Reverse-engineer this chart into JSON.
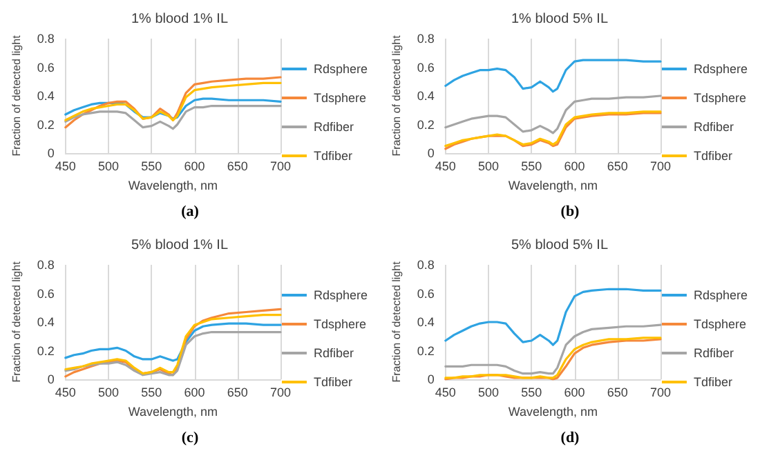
{
  "chart_data": [
    {
      "type": "line",
      "title": "1% blood 1% IL",
      "xlabel": "Wavelength, nm",
      "ylabel": "Fraction of detected light",
      "annotations": [
        "(a)"
      ],
      "xlim": [
        450,
        700
      ],
      "xticks": [
        450,
        500,
        550,
        600,
        650,
        700
      ],
      "ylim": [
        0,
        0.8
      ],
      "yticks": [
        0,
        0.2,
        0.4,
        0.6,
        0.8
      ],
      "grid": "x",
      "legend": "right",
      "marker": "none",
      "line_style": "solid",
      "x": [
        450,
        460,
        470,
        480,
        490,
        500,
        510,
        520,
        530,
        540,
        550,
        560,
        570,
        575,
        580,
        590,
        600,
        610,
        620,
        640,
        660,
        680,
        700
      ],
      "series": [
        {
          "name": "Rdsphere",
          "color": "#2ea3e2",
          "values": [
            0.27,
            0.3,
            0.32,
            0.34,
            0.35,
            0.35,
            0.35,
            0.34,
            0.29,
            0.25,
            0.25,
            0.28,
            0.26,
            0.24,
            0.25,
            0.33,
            0.37,
            0.38,
            0.38,
            0.37,
            0.37,
            0.37,
            0.36
          ]
        },
        {
          "name": "Tdsphere",
          "color": "#f5883a",
          "values": [
            0.18,
            0.23,
            0.27,
            0.3,
            0.33,
            0.35,
            0.36,
            0.36,
            0.31,
            0.24,
            0.25,
            0.31,
            0.27,
            0.23,
            0.28,
            0.42,
            0.48,
            0.49,
            0.5,
            0.51,
            0.52,
            0.52,
            0.53
          ]
        },
        {
          "name": "Rdfiber",
          "color": "#a5a5a5",
          "values": [
            0.22,
            0.25,
            0.27,
            0.28,
            0.29,
            0.29,
            0.29,
            0.28,
            0.23,
            0.18,
            0.19,
            0.22,
            0.19,
            0.17,
            0.2,
            0.29,
            0.32,
            0.32,
            0.33,
            0.33,
            0.33,
            0.33,
            0.33
          ]
        },
        {
          "name": "Tdfiber",
          "color": "#ffc000",
          "values": [
            0.23,
            0.26,
            0.29,
            0.31,
            0.32,
            0.33,
            0.34,
            0.34,
            0.3,
            0.24,
            0.25,
            0.29,
            0.26,
            0.23,
            0.26,
            0.39,
            0.44,
            0.45,
            0.46,
            0.47,
            0.48,
            0.49,
            0.49
          ]
        }
      ]
    },
    {
      "type": "line",
      "title": "1% blood 5% IL",
      "xlabel": "Wavelength, nm",
      "ylabel": "Fraction of detected light",
      "annotations": [
        "(b)"
      ],
      "xlim": [
        450,
        700
      ],
      "xticks": [
        450,
        500,
        550,
        600,
        650,
        700
      ],
      "ylim": [
        0,
        0.8
      ],
      "yticks": [
        0,
        0.2,
        0.4,
        0.6,
        0.8
      ],
      "grid": "x",
      "legend": "right",
      "marker": "none",
      "line_style": "solid",
      "x": [
        450,
        460,
        470,
        480,
        490,
        500,
        510,
        520,
        530,
        540,
        550,
        560,
        570,
        575,
        580,
        590,
        600,
        610,
        620,
        640,
        660,
        680,
        700
      ],
      "series": [
        {
          "name": "Rdsphere",
          "color": "#2ea3e2",
          "values": [
            0.47,
            0.51,
            0.54,
            0.56,
            0.58,
            0.58,
            0.59,
            0.58,
            0.53,
            0.45,
            0.46,
            0.5,
            0.46,
            0.43,
            0.45,
            0.58,
            0.64,
            0.65,
            0.65,
            0.65,
            0.65,
            0.64,
            0.64
          ]
        },
        {
          "name": "Tdsphere",
          "color": "#f5883a",
          "values": [
            0.03,
            0.06,
            0.08,
            0.1,
            0.11,
            0.12,
            0.12,
            0.12,
            0.09,
            0.05,
            0.06,
            0.09,
            0.07,
            0.05,
            0.06,
            0.18,
            0.24,
            0.25,
            0.26,
            0.27,
            0.27,
            0.28,
            0.28
          ]
        },
        {
          "name": "Rdfiber",
          "color": "#a5a5a5",
          "values": [
            0.18,
            0.2,
            0.22,
            0.24,
            0.25,
            0.26,
            0.26,
            0.25,
            0.2,
            0.15,
            0.16,
            0.19,
            0.16,
            0.14,
            0.17,
            0.3,
            0.36,
            0.37,
            0.38,
            0.38,
            0.39,
            0.39,
            0.4
          ]
        },
        {
          "name": "Tdfiber",
          "color": "#ffc000",
          "values": [
            0.05,
            0.07,
            0.09,
            0.1,
            0.11,
            0.12,
            0.13,
            0.12,
            0.09,
            0.06,
            0.07,
            0.1,
            0.08,
            0.06,
            0.08,
            0.2,
            0.25,
            0.26,
            0.27,
            0.28,
            0.28,
            0.29,
            0.29
          ]
        }
      ]
    },
    {
      "type": "line",
      "title": "5% blood 1% IL",
      "xlabel": "Wavelength, nm",
      "ylabel": "Fraction of detected light",
      "annotations": [
        "(c)"
      ],
      "xlim": [
        450,
        700
      ],
      "xticks": [
        450,
        500,
        550,
        600,
        650,
        700
      ],
      "ylim": [
        0,
        0.8
      ],
      "yticks": [
        0,
        0.2,
        0.4,
        0.6,
        0.8
      ],
      "grid": "x",
      "legend": "right",
      "marker": "none",
      "line_style": "solid",
      "x": [
        450,
        460,
        470,
        480,
        490,
        500,
        510,
        520,
        530,
        540,
        550,
        560,
        570,
        575,
        580,
        590,
        600,
        610,
        620,
        640,
        660,
        680,
        700
      ],
      "series": [
        {
          "name": "Rdsphere",
          "color": "#2ea3e2",
          "values": [
            0.15,
            0.17,
            0.18,
            0.2,
            0.21,
            0.21,
            0.22,
            0.2,
            0.16,
            0.14,
            0.14,
            0.16,
            0.14,
            0.13,
            0.14,
            0.26,
            0.34,
            0.37,
            0.38,
            0.39,
            0.39,
            0.38,
            0.38
          ]
        },
        {
          "name": "Tdsphere",
          "color": "#f5883a",
          "values": [
            0.02,
            0.05,
            0.07,
            0.09,
            0.11,
            0.12,
            0.13,
            0.12,
            0.07,
            0.04,
            0.05,
            0.07,
            0.04,
            0.03,
            0.08,
            0.28,
            0.37,
            0.41,
            0.43,
            0.46,
            0.47,
            0.48,
            0.49
          ]
        },
        {
          "name": "Rdfiber",
          "color": "#a5a5a5",
          "values": [
            0.06,
            0.07,
            0.09,
            0.1,
            0.11,
            0.11,
            0.12,
            0.1,
            0.06,
            0.03,
            0.04,
            0.05,
            0.03,
            0.03,
            0.06,
            0.24,
            0.3,
            0.32,
            0.33,
            0.33,
            0.33,
            0.33,
            0.33
          ]
        },
        {
          "name": "Tdfiber",
          "color": "#ffc000",
          "values": [
            0.07,
            0.08,
            0.09,
            0.11,
            0.12,
            0.13,
            0.14,
            0.13,
            0.08,
            0.04,
            0.05,
            0.08,
            0.05,
            0.05,
            0.1,
            0.3,
            0.38,
            0.4,
            0.42,
            0.43,
            0.44,
            0.45,
            0.45
          ]
        }
      ]
    },
    {
      "type": "line",
      "title": "5% blood 5% IL",
      "xlabel": "Wavelength, nm",
      "ylabel": "Fraction of detected light",
      "annotations": [
        "(d)"
      ],
      "xlim": [
        450,
        700
      ],
      "xticks": [
        450,
        500,
        550,
        600,
        650,
        700
      ],
      "ylim": [
        0,
        0.8
      ],
      "yticks": [
        0,
        0.2,
        0.4,
        0.6,
        0.8
      ],
      "grid": "x",
      "legend": "right",
      "marker": "none",
      "line_style": "solid",
      "x": [
        450,
        460,
        470,
        480,
        490,
        500,
        510,
        520,
        530,
        540,
        550,
        560,
        570,
        575,
        580,
        590,
        600,
        610,
        620,
        640,
        660,
        680,
        700
      ],
      "series": [
        {
          "name": "Rdsphere",
          "color": "#2ea3e2",
          "values": [
            0.27,
            0.31,
            0.34,
            0.37,
            0.39,
            0.4,
            0.4,
            0.39,
            0.32,
            0.26,
            0.27,
            0.31,
            0.27,
            0.24,
            0.27,
            0.47,
            0.58,
            0.61,
            0.62,
            0.63,
            0.63,
            0.62,
            0.62
          ]
        },
        {
          "name": "Tdsphere",
          "color": "#f5883a",
          "values": [
            0.0,
            0.01,
            0.01,
            0.02,
            0.02,
            0.03,
            0.03,
            0.02,
            0.01,
            0.01,
            0.01,
            0.01,
            0.01,
            0.0,
            0.01,
            0.09,
            0.18,
            0.22,
            0.24,
            0.26,
            0.27,
            0.27,
            0.28
          ]
        },
        {
          "name": "Rdfiber",
          "color": "#a5a5a5",
          "values": [
            0.09,
            0.09,
            0.09,
            0.1,
            0.1,
            0.1,
            0.1,
            0.09,
            0.06,
            0.04,
            0.04,
            0.05,
            0.04,
            0.04,
            0.08,
            0.24,
            0.3,
            0.33,
            0.35,
            0.36,
            0.37,
            0.37,
            0.38
          ]
        },
        {
          "name": "Tdfiber",
          "color": "#ffc000",
          "values": [
            0.01,
            0.01,
            0.02,
            0.02,
            0.03,
            0.03,
            0.03,
            0.03,
            0.02,
            0.01,
            0.01,
            0.02,
            0.01,
            0.01,
            0.03,
            0.14,
            0.21,
            0.24,
            0.26,
            0.28,
            0.28,
            0.29,
            0.29
          ]
        }
      ]
    }
  ]
}
